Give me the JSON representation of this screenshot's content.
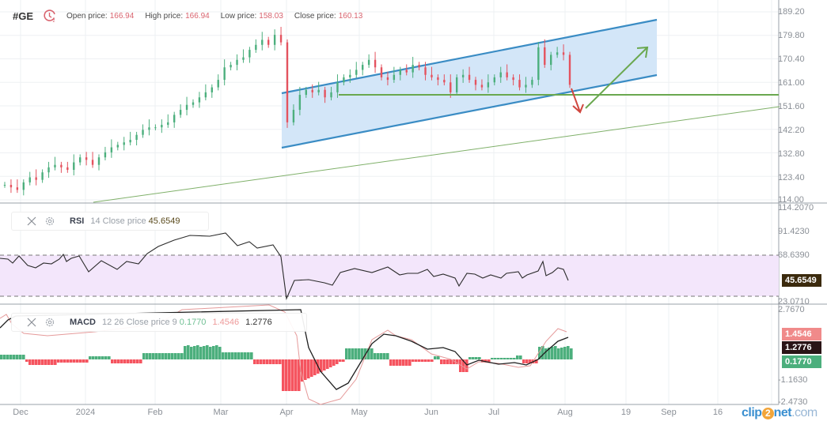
{
  "header": {
    "symbol": "#GE",
    "open_label": "Open price:",
    "open_value": "166.94",
    "high_label": "High price:",
    "high_value": "166.94",
    "low_label": "Low price:",
    "low_value": "158.03",
    "close_label": "Close price:",
    "close_value": "160.13"
  },
  "rsi_legend": {
    "name": "RSI",
    "params": "14 Close price",
    "value": "45.6549"
  },
  "macd_legend": {
    "name": "MACD",
    "params": "12 26 Close price 9",
    "hist": "0.1770",
    "signal": "1.4546",
    "macd": "1.2776"
  },
  "price_axis": [
    "189.20",
    "179.80",
    "170.40",
    "161.00",
    "151.60",
    "142.20",
    "132.80",
    "123.40",
    "114.00"
  ],
  "rsi_axis": [
    "114.2070",
    "91.4230",
    "68.6390",
    "23.0710"
  ],
  "macd_axis": [
    "2.7670",
    "-1.1630",
    "-2.4730"
  ],
  "badges": {
    "rsi": "45.6549",
    "macd_signal": "1.4546",
    "macd_line": "1.2776",
    "macd_hist": "0.1770"
  },
  "x_axis": [
    "Dec",
    "2024",
    "Feb",
    "Mar",
    "Apr",
    "May",
    "Jun",
    "Jul",
    "Aug",
    "19",
    "Sep",
    "16"
  ],
  "watermark": {
    "pre": "clip",
    "mid": "2",
    "post": "net",
    "tld": ".com"
  },
  "colors": {
    "up": "#4caf7d",
    "down": "#e4535f",
    "channel": "#3a8cc4",
    "channel_fill": "#d3e6f7",
    "support": "#6aa84f",
    "rsi_band": "#f3e6fb",
    "macd_hist_up": "#4caf7d",
    "macd_hist_down": "#f5545f"
  },
  "chart_data": [
    {
      "type": "candlestick",
      "title": "#GE",
      "ylim": [
        114.0,
        189.2
      ],
      "x_ticks": [
        "Dec",
        "2024",
        "Feb",
        "Mar",
        "Apr",
        "May",
        "Jun",
        "Jul",
        "Aug",
        "19",
        "Sep",
        "16"
      ],
      "y_ticks": [
        189.2,
        179.8,
        170.4,
        161.0,
        151.6,
        142.2,
        132.8,
        123.4,
        114.0
      ],
      "last_bar": {
        "open": 166.94,
        "high": 166.94,
        "low": 158.03,
        "close": 160.13
      },
      "approx_closes": [
        120,
        119,
        118,
        121,
        123,
        122,
        125,
        127,
        128,
        127,
        126,
        129,
        131,
        130,
        128,
        131,
        133,
        135,
        136,
        137,
        138,
        140,
        142,
        143,
        143,
        144,
        145,
        148,
        150,
        152,
        153,
        155,
        157,
        159,
        162,
        167,
        168,
        170,
        171,
        174,
        176,
        178,
        176,
        180,
        177,
        145,
        150,
        156,
        158,
        157,
        158,
        155,
        157,
        161,
        163,
        164,
        166,
        168,
        170,
        167,
        163,
        162,
        164,
        166,
        165,
        168,
        167,
        164,
        163,
        162,
        161,
        157,
        163,
        164,
        162,
        160,
        159,
        161,
        163,
        165,
        163,
        162,
        159,
        160,
        162,
        175,
        168,
        172,
        173,
        172,
        160
      ],
      "annotations": [
        {
          "type": "ascending_channel",
          "upper": [
            [
              356,
              118
            ],
            [
              830,
              25
            ]
          ],
          "lower": [
            [
              356,
              187
            ],
            [
              830,
              95
            ]
          ]
        },
        {
          "type": "horizontal_support",
          "value": 157.5
        },
        {
          "type": "long_trendline",
          "from": [
            118,
            256
          ],
          "to": [
            985,
            135
          ]
        },
        {
          "type": "arrow_down",
          "from": [
            722,
            112
          ],
          "to": [
            733,
            142
          ],
          "color": "red"
        },
        {
          "type": "arrow_up",
          "from": [
            740,
            137
          ],
          "to": [
            818,
            60
          ],
          "color": "green"
        }
      ]
    },
    {
      "type": "line",
      "title": "RSI 14 Close price",
      "ylim": [
        23.071,
        114.207
      ],
      "bands": [
        68.639,
        23.071
      ],
      "last_value": 45.6549
    },
    {
      "type": "bar+line",
      "title": "MACD 12 26 Close price 9",
      "ylim": [
        -2.473,
        2.767
      ],
      "series": [
        {
          "name": "histogram",
          "last": 0.177
        },
        {
          "name": "signal",
          "last": 1.4546
        },
        {
          "name": "macd",
          "last": 1.2776
        }
      ]
    }
  ]
}
